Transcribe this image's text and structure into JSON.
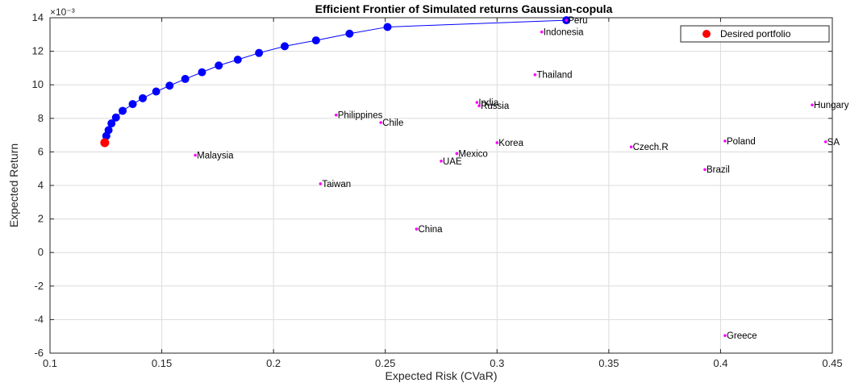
{
  "chart_data": {
    "type": "scatter",
    "title": "Efficient Frontier of Simulated returns Gaussian-copula",
    "xlabel": "Expected Risk (CVaR)",
    "ylabel": "Expected Return",
    "y_exponent_label": "×10⁻³",
    "xlim": [
      0.1,
      0.45
    ],
    "ylim": [
      -6,
      14
    ],
    "x_ticks": [
      0.1,
      0.15,
      0.2,
      0.25,
      0.3,
      0.35,
      0.4,
      0.45
    ],
    "x_tick_labels": [
      "0.1",
      "0.15",
      "0.2",
      "0.25",
      "0.3",
      "0.35",
      "0.4",
      "0.45"
    ],
    "y_ticks": [
      -6,
      -4,
      -2,
      0,
      2,
      4,
      6,
      8,
      10,
      12,
      14
    ],
    "y_tick_labels": [
      "-6",
      "-4",
      "-2",
      "0",
      "2",
      "4",
      "6",
      "8",
      "10",
      "12",
      "14"
    ],
    "grid": true,
    "legend_position": "top-right",
    "colors": {
      "frontier": "#0000ff",
      "desired": "#ff0000",
      "country": "#ff00ff"
    },
    "frontier": {
      "x": [
        0.1245,
        0.1252,
        0.1262,
        0.1275,
        0.1295,
        0.1325,
        0.137,
        0.1415,
        0.1475,
        0.1535,
        0.1605,
        0.168,
        0.1755,
        0.184,
        0.1935,
        0.205,
        0.219,
        0.234,
        0.251,
        0.331
      ],
      "y": [
        6.55,
        6.95,
        7.3,
        7.7,
        8.05,
        8.45,
        8.85,
        9.2,
        9.6,
        9.95,
        10.35,
        10.75,
        11.15,
        11.5,
        11.9,
        12.3,
        12.65,
        13.05,
        13.45,
        13.85
      ]
    },
    "desired_portfolio": {
      "name": "Desired portfolio",
      "x": 0.1245,
      "y": 6.55
    },
    "countries": [
      {
        "name": "Peru",
        "x": 0.331,
        "y": 13.85
      },
      {
        "name": "Indonesia",
        "x": 0.32,
        "y": 13.15
      },
      {
        "name": "Thailand",
        "x": 0.317,
        "y": 10.6
      },
      {
        "name": "India",
        "x": 0.291,
        "y": 8.95
      },
      {
        "name": "Russia",
        "x": 0.292,
        "y": 8.75
      },
      {
        "name": "Philippines",
        "x": 0.228,
        "y": 8.2
      },
      {
        "name": "Chile",
        "x": 0.248,
        "y": 7.75
      },
      {
        "name": "Hungary",
        "x": 0.441,
        "y": 8.8
      },
      {
        "name": "Korea",
        "x": 0.3,
        "y": 6.55
      },
      {
        "name": "Poland",
        "x": 0.402,
        "y": 6.65
      },
      {
        "name": "SA",
        "x": 0.447,
        "y": 6.6
      },
      {
        "name": "Czech.R",
        "x": 0.36,
        "y": 6.3
      },
      {
        "name": "Mexico",
        "x": 0.282,
        "y": 5.9
      },
      {
        "name": "Malaysia",
        "x": 0.165,
        "y": 5.8
      },
      {
        "name": "UAE",
        "x": 0.275,
        "y": 5.45
      },
      {
        "name": "Brazil",
        "x": 0.393,
        "y": 4.95
      },
      {
        "name": "Taiwan",
        "x": 0.221,
        "y": 4.1
      },
      {
        "name": "China",
        "x": 0.264,
        "y": 1.4
      },
      {
        "name": "Greece",
        "x": 0.402,
        "y": -4.95
      }
    ]
  }
}
